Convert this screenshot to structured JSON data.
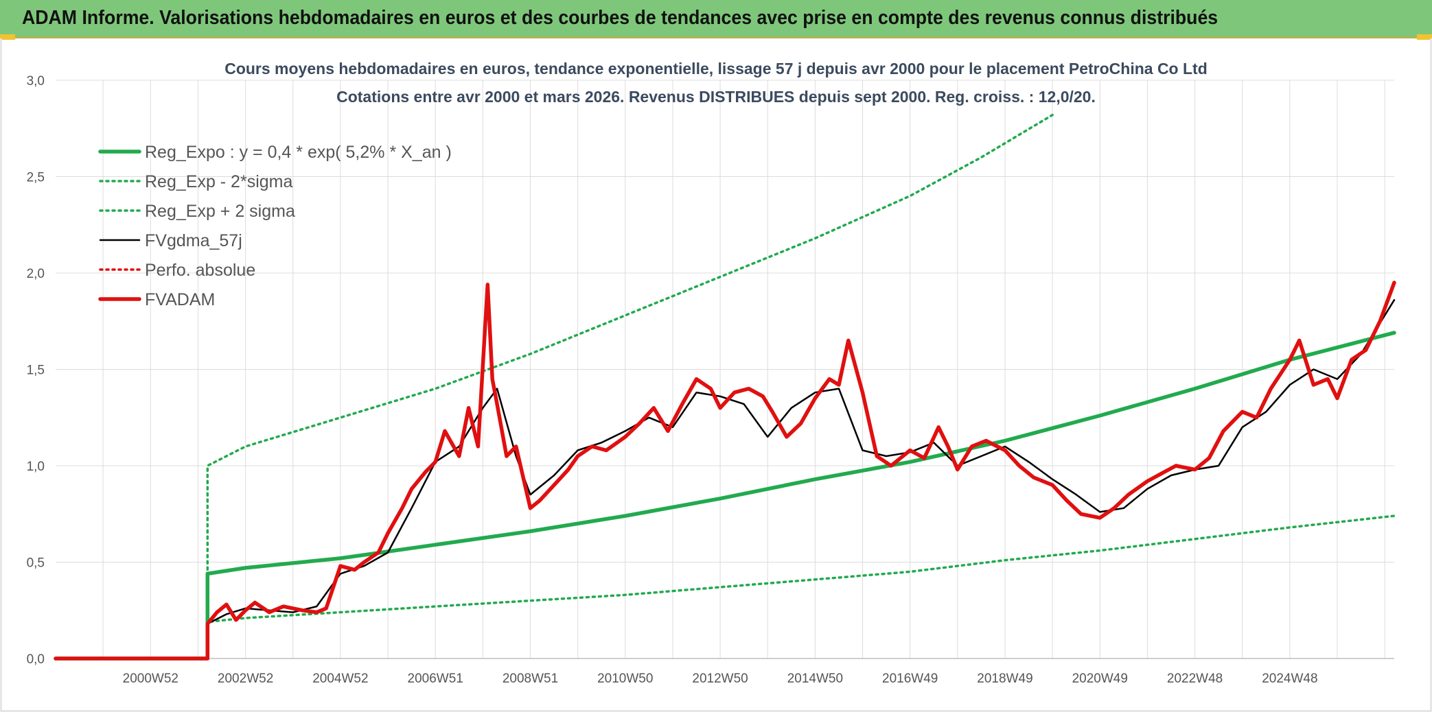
{
  "header": {
    "title": "ADAM Informe. Valorisations hebdomadaires en euros et des courbes de tendances avec prise en compte des revenus connus distribués"
  },
  "chart_data": {
    "type": "line",
    "title": "Cours moyens hebdomadaires en euros, tendance exponentielle, lissage 57 j depuis avr 2000 pour le placement PetroChina Co Ltd",
    "subtitle": "Cotations entre avr 2000 et mars 2026. Revenus DISTRIBUES depuis sept 2000. Reg. croiss. : 12,0/20.",
    "xlabel": "",
    "ylabel": "",
    "x_range": [
      1998.0,
      2026.2
    ],
    "ylim": [
      0,
      3.0
    ],
    "yticks": [
      "0,0",
      "0,5",
      "1,0",
      "1,5",
      "2,0",
      "2,5",
      "3,0"
    ],
    "xtick_labels": [
      {
        "label": "2000W52",
        "x": 2000.0
      },
      {
        "label": "2002W52",
        "x": 2002.0
      },
      {
        "label": "2004W52",
        "x": 2004.0
      },
      {
        "label": "2006W51",
        "x": 2006.0
      },
      {
        "label": "2008W51",
        "x": 2008.0
      },
      {
        "label": "2010W50",
        "x": 2010.0
      },
      {
        "label": "2012W50",
        "x": 2012.0
      },
      {
        "label": "2014W50",
        "x": 2014.0
      },
      {
        "label": "2016W49",
        "x": 2016.0
      },
      {
        "label": "2018W49",
        "x": 2018.0
      },
      {
        "label": "2020W49",
        "x": 2020.0
      },
      {
        "label": "2022W48",
        "x": 2022.0
      },
      {
        "label": "2024W48",
        "x": 2024.0
      }
    ],
    "grid": true,
    "legend_position": "top-left",
    "series": [
      {
        "name": "Reg_Expo : y = 0,4 * exp( 5,2% *  X_an )",
        "color": "#22aa4e",
        "style": "solid-thick",
        "x": [
          1998.0,
          2001.2,
          2001.2,
          2002.0,
          2004.0,
          2006.0,
          2008.0,
          2010.0,
          2012.0,
          2014.0,
          2016.0,
          2018.0,
          2020.0,
          2022.0,
          2024.0,
          2026.2
        ],
        "y": [
          0,
          0,
          0.44,
          0.47,
          0.52,
          0.59,
          0.66,
          0.74,
          0.83,
          0.93,
          1.02,
          1.13,
          1.26,
          1.4,
          1.55,
          1.69
        ]
      },
      {
        "name": "Reg_Exp - 2*sigma",
        "color": "#22aa4e",
        "style": "dotted",
        "x": [
          1998.0,
          2001.2,
          2001.2,
          2002.0,
          2004.0,
          2006.0,
          2008.0,
          2010.0,
          2012.0,
          2014.0,
          2016.0,
          2018.0,
          2020.0,
          2022.0,
          2024.0,
          2026.2
        ],
        "y": [
          0,
          0,
          0.19,
          0.21,
          0.24,
          0.27,
          0.3,
          0.33,
          0.37,
          0.41,
          0.45,
          0.51,
          0.56,
          0.62,
          0.68,
          0.74
        ]
      },
      {
        "name": "Reg_Exp + 2 sigma",
        "color": "#22aa4e",
        "style": "dotted",
        "x": [
          1998.0,
          2001.2,
          2001.2,
          2002.0,
          2004.0,
          2006.0,
          2008.0,
          2010.0,
          2012.0,
          2014.0,
          2016.0,
          2017.5,
          2019.0
        ],
        "y": [
          0,
          0,
          1.0,
          1.1,
          1.25,
          1.4,
          1.58,
          1.78,
          1.98,
          2.18,
          2.4,
          2.6,
          2.82
        ]
      },
      {
        "name": "FVgdma_57j",
        "color": "#000000",
        "style": "solid",
        "x": [
          1998.0,
          2001.2,
          2001.2,
          2001.6,
          2002.0,
          2002.5,
          2003.0,
          2003.5,
          2004.0,
          2004.5,
          2005.0,
          2005.5,
          2006.0,
          2006.5,
          2007.0,
          2007.3,
          2007.7,
          2008.0,
          2008.5,
          2009.0,
          2009.5,
          2010.0,
          2010.5,
          2011.0,
          2011.5,
          2012.0,
          2012.5,
          2013.0,
          2013.5,
          2014.0,
          2014.5,
          2015.0,
          2015.5,
          2016.0,
          2016.5,
          2017.0,
          2017.5,
          2018.0,
          2018.5,
          2019.0,
          2019.5,
          2020.0,
          2020.5,
          2021.0,
          2021.5,
          2022.0,
          2022.5,
          2023.0,
          2023.5,
          2024.0,
          2024.5,
          2025.0,
          2025.5,
          2026.2
        ],
        "y": [
          0,
          0,
          0.18,
          0.23,
          0.26,
          0.25,
          0.24,
          0.27,
          0.44,
          0.48,
          0.55,
          0.78,
          1.02,
          1.1,
          1.3,
          1.4,
          1.05,
          0.85,
          0.95,
          1.08,
          1.12,
          1.18,
          1.25,
          1.2,
          1.38,
          1.36,
          1.32,
          1.15,
          1.3,
          1.38,
          1.4,
          1.08,
          1.05,
          1.07,
          1.12,
          1.0,
          1.05,
          1.1,
          1.02,
          0.93,
          0.85,
          0.76,
          0.78,
          0.88,
          0.95,
          0.98,
          1.0,
          1.2,
          1.28,
          1.42,
          1.5,
          1.45,
          1.58,
          1.86
        ]
      },
      {
        "name": "Perfo. absolue",
        "color": "#e01010",
        "style": "dotted",
        "x": [
          1998.0,
          2001.2
        ],
        "y": [
          0,
          0
        ]
      },
      {
        "name": "FVADAM",
        "color": "#e01010",
        "style": "solid-thick",
        "x": [
          1998.0,
          2001.2,
          2001.2,
          2001.4,
          2001.6,
          2001.8,
          2002.0,
          2002.2,
          2002.5,
          2002.8,
          2003.0,
          2003.2,
          2003.5,
          2003.7,
          2004.0,
          2004.3,
          2004.5,
          2004.8,
          2005.0,
          2005.3,
          2005.5,
          2005.8,
          2006.0,
          2006.2,
          2006.5,
          2006.7,
          2006.9,
          2007.1,
          2007.2,
          2007.3,
          2007.5,
          2007.7,
          2008.0,
          2008.2,
          2008.5,
          2008.8,
          2009.0,
          2009.3,
          2009.6,
          2010.0,
          2010.3,
          2010.6,
          2010.9,
          2011.2,
          2011.5,
          2011.8,
          2012.0,
          2012.3,
          2012.6,
          2012.9,
          2013.1,
          2013.4,
          2013.7,
          2014.0,
          2014.3,
          2014.5,
          2014.7,
          2015.0,
          2015.3,
          2015.6,
          2016.0,
          2016.3,
          2016.6,
          2016.8,
          2017.0,
          2017.3,
          2017.6,
          2018.0,
          2018.3,
          2018.6,
          2019.0,
          2019.3,
          2019.6,
          2020.0,
          2020.3,
          2020.6,
          2021.0,
          2021.3,
          2021.6,
          2022.0,
          2022.3,
          2022.6,
          2023.0,
          2023.3,
          2023.6,
          2024.0,
          2024.2,
          2024.5,
          2024.8,
          2025.0,
          2025.3,
          2025.6,
          2025.9,
          2026.2
        ],
        "y": [
          0,
          0,
          0.18,
          0.24,
          0.28,
          0.2,
          0.25,
          0.29,
          0.24,
          0.27,
          0.26,
          0.25,
          0.24,
          0.26,
          0.48,
          0.46,
          0.5,
          0.55,
          0.65,
          0.78,
          0.88,
          0.97,
          1.02,
          1.18,
          1.05,
          1.3,
          1.1,
          1.94,
          1.45,
          1.32,
          1.05,
          1.1,
          0.78,
          0.82,
          0.9,
          0.98,
          1.05,
          1.1,
          1.08,
          1.15,
          1.22,
          1.3,
          1.18,
          1.32,
          1.45,
          1.4,
          1.3,
          1.38,
          1.4,
          1.36,
          1.28,
          1.15,
          1.22,
          1.35,
          1.45,
          1.42,
          1.65,
          1.38,
          1.05,
          1.0,
          1.08,
          1.04,
          1.2,
          1.1,
          0.98,
          1.1,
          1.13,
          1.08,
          1.0,
          0.94,
          0.9,
          0.82,
          0.75,
          0.73,
          0.78,
          0.85,
          0.92,
          0.96,
          1.0,
          0.98,
          1.04,
          1.18,
          1.28,
          1.25,
          1.4,
          1.55,
          1.65,
          1.42,
          1.45,
          1.35,
          1.55,
          1.6,
          1.75,
          1.95
        ]
      }
    ]
  }
}
